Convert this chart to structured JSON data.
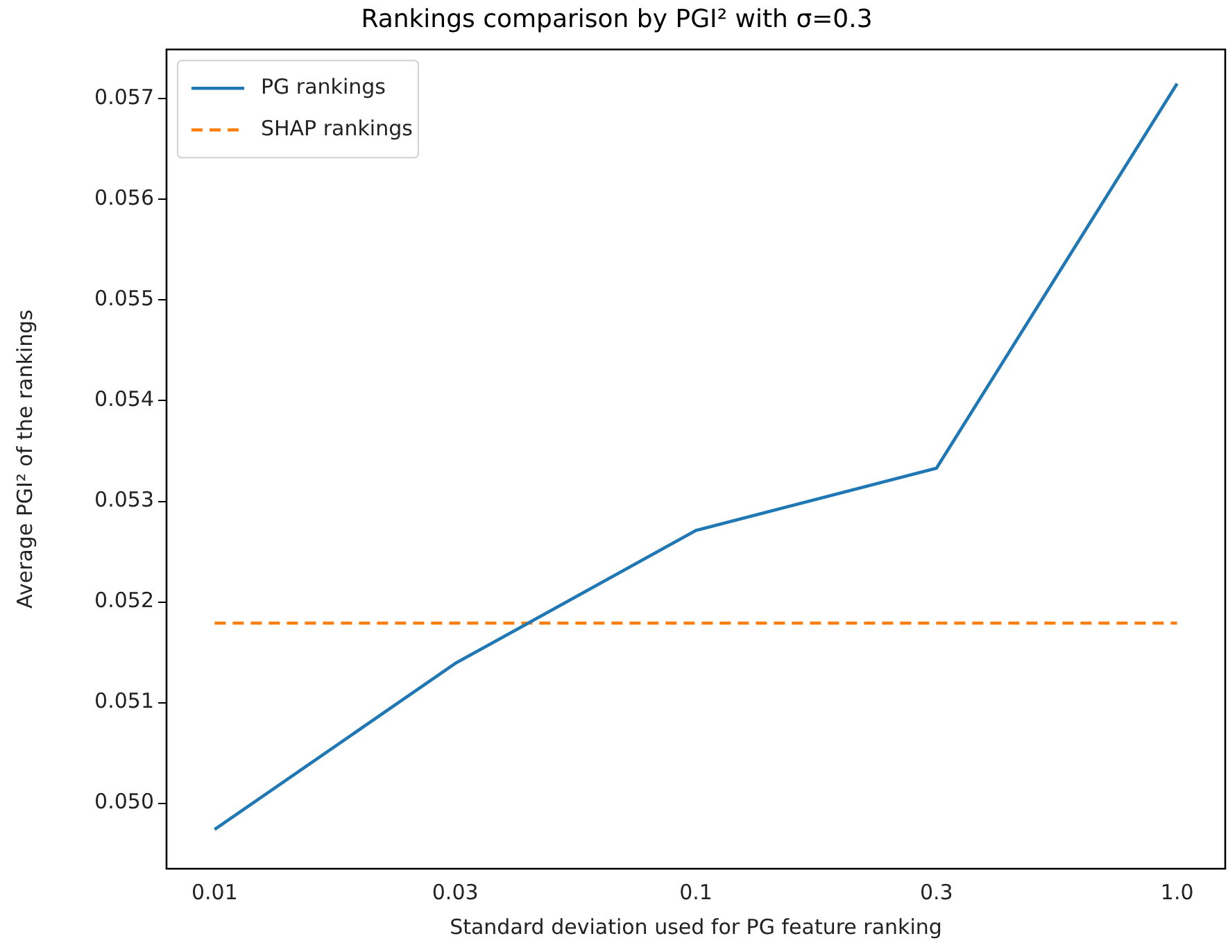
{
  "chart_data": {
    "type": "line",
    "title": "Rankings comparison by PGI² with σ=0.3",
    "xlabel": "Standard deviation used for PG feature ranking",
    "ylabel": "Average PGI² of the rankings",
    "categories": [
      "0.01",
      "0.03",
      "0.1",
      "0.3",
      "1.0"
    ],
    "series": [
      {
        "name": "PG rankings",
        "color": "#1f77b4",
        "values": [
          0.04974,
          0.05139,
          0.05271,
          0.05333,
          0.05715
        ],
        "line_style": "solid"
      },
      {
        "name": "SHAP rankings",
        "color": "#ff7f0e",
        "values": [
          0.05179,
          0.05179,
          0.05179,
          0.05179,
          0.05179
        ],
        "line_style": "dashed"
      }
    ],
    "ylim": [
      0.04935,
      0.05749
    ],
    "yticks": [
      {
        "value": 0.05,
        "label": "0.050"
      },
      0.051,
      0.052,
      0.053,
      0.054,
      0.055,
      0.056,
      0.057
    ],
    "legend": "top left",
    "grid": false,
    "marker": "none"
  }
}
